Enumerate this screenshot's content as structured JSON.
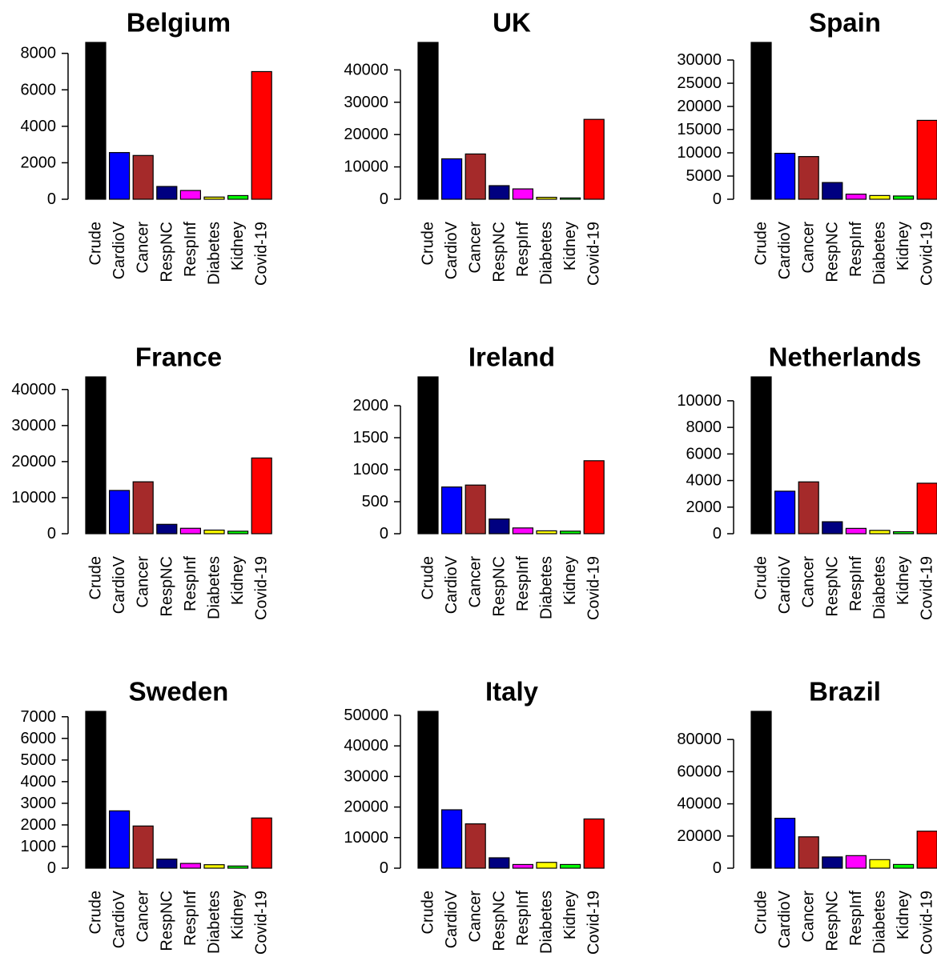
{
  "colors": {
    "Crude": "#000000",
    "CardioV": "#0000ff",
    "Cancer": "#a52a2a",
    "RespNC": "#000080",
    "RespInf": "#ff00ff",
    "Diabetes": "#ffff00",
    "Kidney": "#00ff00",
    "Covid-19": "#ff0000"
  },
  "chart_data": [
    {
      "type": "bar",
      "title": "Belgium",
      "categories": [
        "Crude",
        "CardioV",
        "Cancer",
        "RespNC",
        "RespInf",
        "Diabetes",
        "Kidney",
        "Covid-19"
      ],
      "values": [
        8600,
        2560,
        2400,
        700,
        480,
        120,
        200,
        7000
      ],
      "yticks": [
        0,
        2000,
        4000,
        6000,
        8000
      ],
      "ylim": [
        0,
        8600
      ]
    },
    {
      "type": "bar",
      "title": "UK",
      "categories": [
        "Crude",
        "CardioV",
        "Cancer",
        "RespNC",
        "RespInf",
        "Diabetes",
        "Kidney",
        "Covid-19"
      ],
      "values": [
        48500,
        12500,
        14000,
        4200,
        3200,
        600,
        400,
        24700
      ],
      "yticks": [
        0,
        10000,
        20000,
        30000,
        40000
      ],
      "ylim": [
        0,
        48500
      ]
    },
    {
      "type": "bar",
      "title": "Spain",
      "categories": [
        "Crude",
        "CardioV",
        "Cancer",
        "RespNC",
        "RespInf",
        "Diabetes",
        "Kidney",
        "Covid-19"
      ],
      "values": [
        33800,
        9900,
        9200,
        3600,
        1100,
        800,
        700,
        17000
      ],
      "yticks": [
        0,
        5000,
        10000,
        15000,
        20000,
        25000,
        30000
      ],
      "ylim": [
        0,
        33800
      ]
    },
    {
      "type": "bar",
      "title": "France",
      "categories": [
        "Crude",
        "CardioV",
        "Cancer",
        "RespNC",
        "RespInf",
        "Diabetes",
        "Kidney",
        "Covid-19"
      ],
      "values": [
        43500,
        12000,
        14400,
        2600,
        1500,
        1000,
        700,
        21000
      ],
      "yticks": [
        0,
        10000,
        20000,
        30000,
        40000
      ],
      "ylim": [
        0,
        43500
      ]
    },
    {
      "type": "bar",
      "title": "Ireland",
      "categories": [
        "Crude",
        "CardioV",
        "Cancer",
        "RespNC",
        "RespInf",
        "Diabetes",
        "Kidney",
        "Covid-19"
      ],
      "values": [
        2450,
        730,
        760,
        230,
        90,
        45,
        40,
        1140
      ],
      "yticks": [
        0,
        500,
        1000,
        1500,
        2000
      ],
      "ylim": [
        0,
        2450
      ]
    },
    {
      "type": "bar",
      "title": "Netherlands",
      "categories": [
        "Crude",
        "CardioV",
        "Cancer",
        "RespNC",
        "RespInf",
        "Diabetes",
        "Kidney",
        "Covid-19"
      ],
      "values": [
        11800,
        3200,
        3900,
        900,
        400,
        250,
        150,
        3800
      ],
      "yticks": [
        0,
        2000,
        4000,
        6000,
        8000,
        10000
      ],
      "ylim": [
        0,
        11800
      ]
    },
    {
      "type": "bar",
      "title": "Sweden",
      "categories": [
        "Crude",
        "CardioV",
        "Cancer",
        "RespNC",
        "RespInf",
        "Diabetes",
        "Kidney",
        "Covid-19"
      ],
      "values": [
        7250,
        2650,
        1950,
        420,
        220,
        160,
        100,
        2320
      ],
      "yticks": [
        0,
        1000,
        2000,
        3000,
        4000,
        5000,
        6000,
        7000
      ],
      "ylim": [
        0,
        7250
      ]
    },
    {
      "type": "bar",
      "title": "Italy",
      "categories": [
        "Crude",
        "CardioV",
        "Cancer",
        "RespNC",
        "RespInf",
        "Diabetes",
        "Kidney",
        "Covid-19"
      ],
      "values": [
        51300,
        19100,
        14500,
        3400,
        1200,
        1900,
        1200,
        16100
      ],
      "yticks": [
        0,
        10000,
        20000,
        30000,
        40000,
        50000
      ],
      "ylim": [
        0,
        51300
      ]
    },
    {
      "type": "bar",
      "title": "Brazil",
      "categories": [
        "Crude",
        "CardioV",
        "Cancer",
        "RespNC",
        "RespInf",
        "Diabetes",
        "Kidney",
        "Covid-19"
      ],
      "values": [
        97500,
        31000,
        19500,
        7000,
        7800,
        5300,
        2300,
        23000
      ],
      "yticks": [
        0,
        20000,
        40000,
        60000,
        80000
      ],
      "ylim": [
        0,
        97500
      ]
    }
  ]
}
